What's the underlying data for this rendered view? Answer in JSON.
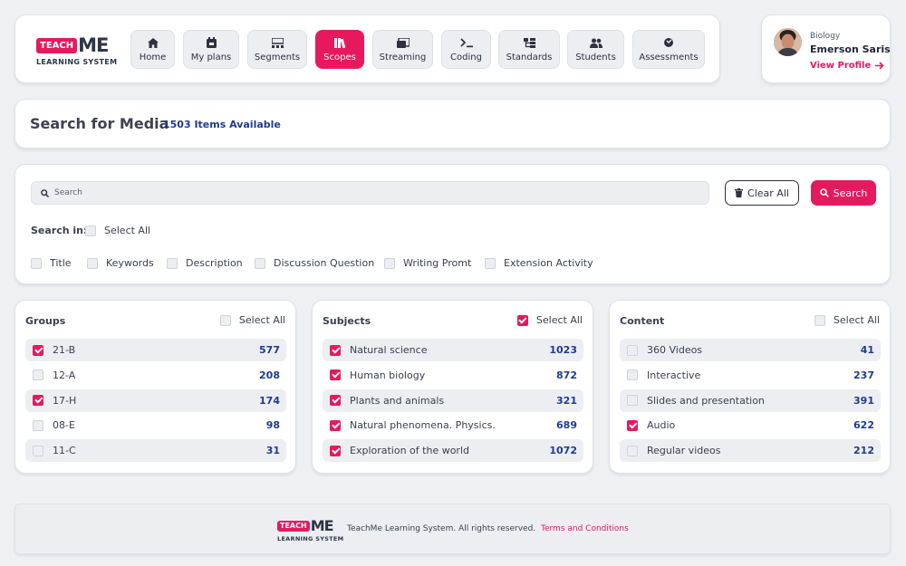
{
  "brand": {
    "mark_primary": "TEACH",
    "mark_secondary": "ME",
    "subtitle": "LEARNING SYSTEM"
  },
  "nav": {
    "items": [
      {
        "label": "Home",
        "icon": "home-icon",
        "active": false
      },
      {
        "label": "My plans",
        "icon": "calendar-icon",
        "active": false
      },
      {
        "label": "Segments",
        "icon": "segments-icon",
        "active": false
      },
      {
        "label": "Scopes",
        "icon": "books-icon",
        "active": true
      },
      {
        "label": "Streaming",
        "icon": "streaming-icon",
        "active": false
      },
      {
        "label": "Coding",
        "icon": "terminal-icon",
        "active": false
      },
      {
        "label": "Standards",
        "icon": "sitemap-icon",
        "active": false
      },
      {
        "label": "Students",
        "icon": "users-icon",
        "active": false
      },
      {
        "label": "Assessments",
        "icon": "assessment-icon",
        "active": false
      }
    ]
  },
  "profile": {
    "subject": "Biology",
    "name": "Emerson Saris",
    "link": "View Profile"
  },
  "header": {
    "title": "Search for Media",
    "count": "1503 Items Available"
  },
  "search": {
    "placeholder": "Search",
    "clear_label": "Clear All",
    "search_label": "Search",
    "search_in_label": "Search in:",
    "select_all_label": "Select All",
    "fields": [
      {
        "label": "Title",
        "checked": false
      },
      {
        "label": "Keywords",
        "checked": false
      },
      {
        "label": "Description",
        "checked": false
      },
      {
        "label": "Discussion Question",
        "checked": false
      },
      {
        "label": "Writing Promt",
        "checked": false
      },
      {
        "label": "Extension Activity",
        "checked": false
      }
    ]
  },
  "filters": {
    "groups": {
      "title": "Groups",
      "select_all": "Select All",
      "select_all_checked": false,
      "items": [
        {
          "label": "21-B",
          "count": "577",
          "checked": true
        },
        {
          "label": "12-A",
          "count": "208",
          "checked": false
        },
        {
          "label": "17-H",
          "count": "174",
          "checked": true
        },
        {
          "label": "08-E",
          "count": "98",
          "checked": false
        },
        {
          "label": "11-C",
          "count": "31",
          "checked": false
        }
      ]
    },
    "subjects": {
      "title": "Subjects",
      "select_all": "Select All",
      "select_all_checked": true,
      "items": [
        {
          "label": "Natural science",
          "count": "1023",
          "checked": true
        },
        {
          "label": "Human biology",
          "count": "872",
          "checked": true
        },
        {
          "label": "Plants and animals",
          "count": "321",
          "checked": true
        },
        {
          "label": "Natural phenomena. Physics.",
          "count": "689",
          "checked": true
        },
        {
          "label": "Exploration of the world",
          "count": "1072",
          "checked": true
        }
      ]
    },
    "content": {
      "title": "Content",
      "select_all": "Select All",
      "select_all_checked": false,
      "items": [
        {
          "label": "360 Videos",
          "count": "41",
          "checked": false
        },
        {
          "label": "Interactive",
          "count": "237",
          "checked": false
        },
        {
          "label": "Slides and presentation",
          "count": "391",
          "checked": false
        },
        {
          "label": "Audio",
          "count": "622",
          "checked": true
        },
        {
          "label": "Regular videos",
          "count": "212",
          "checked": false
        }
      ]
    }
  },
  "footer": {
    "text": "TeachMe Learning System. All rights reserved.",
    "link": "Terms and Conditions"
  },
  "colors": {
    "accent": "#e6195f",
    "count_blue": "#1f3b8f",
    "surface": "#eceef2",
    "text": "#2e3140"
  }
}
